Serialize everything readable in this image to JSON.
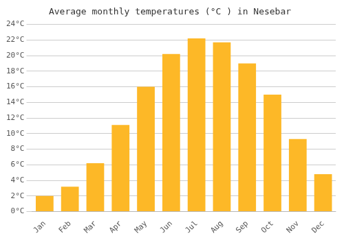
{
  "chart_data": {
    "type": "bar",
    "title": "Average monthly temperatures (°C ) in Nesebar",
    "categories": [
      "Jan",
      "Feb",
      "Mar",
      "Apr",
      "May",
      "Jun",
      "Jul",
      "Aug",
      "Sep",
      "Oct",
      "Nov",
      "Dec"
    ],
    "values": [
      2.0,
      3.2,
      6.2,
      11.1,
      16.0,
      20.2,
      22.2,
      21.7,
      19.0,
      15.0,
      9.3,
      4.8
    ],
    "color": "#FDB827",
    "ylim": [
      0,
      24
    ],
    "yticks": [
      {
        "value": 0,
        "label": "0°C"
      },
      {
        "value": 2,
        "label": "2°C"
      },
      {
        "value": 4,
        "label": "4°C"
      },
      {
        "value": 6,
        "label": "6°C"
      },
      {
        "value": 8,
        "label": "8°C"
      },
      {
        "value": 10,
        "label": "10°C"
      },
      {
        "value": 12,
        "label": "12°C"
      },
      {
        "value": 14,
        "label": "14°C"
      },
      {
        "value": 16,
        "label": "16°C"
      },
      {
        "value": 18,
        "label": "18°C"
      },
      {
        "value": 20,
        "label": "20°C"
      },
      {
        "value": 22,
        "label": "22°C"
      },
      {
        "value": 24,
        "label": "24°C"
      }
    ],
    "grid": true
  }
}
